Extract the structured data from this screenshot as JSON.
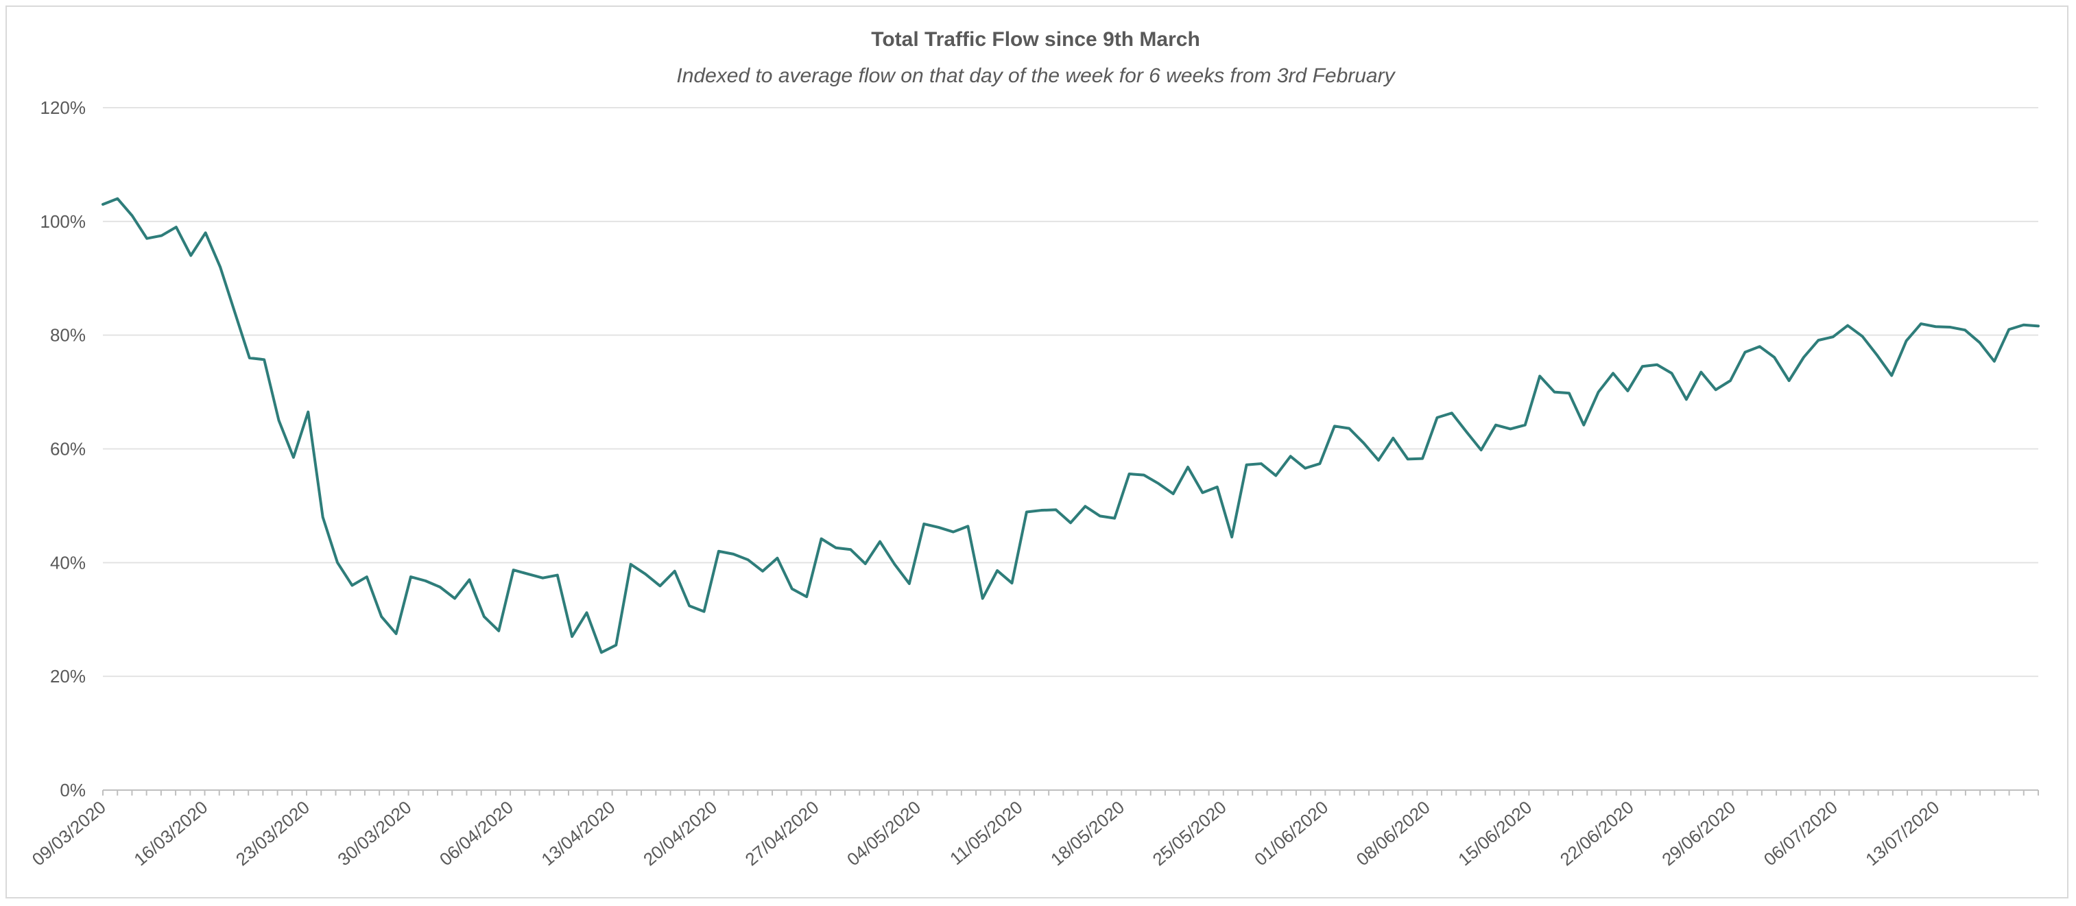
{
  "chart_data": {
    "type": "line",
    "title": "Total Traffic Flow since 9th March",
    "subtitle": "Indexed to average flow on that day of the week for 6 weeks from 3rd February",
    "xlabel": "",
    "ylabel": "",
    "ylim": [
      0,
      120
    ],
    "y_ticks": [
      "0%",
      "20%",
      "40%",
      "60%",
      "80%",
      "100%",
      "120%"
    ],
    "y_tick_values": [
      0,
      20,
      40,
      60,
      80,
      100,
      120
    ],
    "x_start": "09/03/2020",
    "x_end": "20/07/2020",
    "x_tick_labels": [
      "09/03/2020",
      "16/03/2020",
      "23/03/2020",
      "30/03/2020",
      "06/04/2020",
      "13/04/2020",
      "20/04/2020",
      "27/04/2020",
      "04/05/2020",
      "11/05/2020",
      "18/05/2020",
      "25/05/2020",
      "01/06/2020",
      "08/06/2020",
      "15/06/2020",
      "22/06/2020",
      "29/06/2020",
      "06/07/2020",
      "13/07/2020"
    ],
    "grid": true,
    "legend": "none",
    "series": [
      {
        "color": "#2e7d7a",
        "values": [
          103.0,
          104.0,
          101.0,
          97.0,
          97.5,
          99.0,
          94.0,
          98.0,
          92.0,
          84.0,
          76.0,
          75.7,
          65.0,
          58.5,
          66.5,
          48.0,
          40.0,
          36.0,
          37.5,
          30.5,
          27.5,
          37.5,
          36.8,
          35.7,
          33.7,
          37.0,
          30.5,
          28.0,
          38.7,
          38.0,
          37.3,
          37.8,
          27.0,
          31.2,
          24.2,
          25.5,
          39.7,
          38.0,
          35.9,
          38.5,
          32.4,
          31.4,
          42.0,
          41.5,
          40.5,
          38.5,
          40.8,
          35.4,
          34.0,
          44.2,
          42.6,
          42.3,
          39.8,
          43.7,
          39.7,
          36.3,
          46.8,
          46.2,
          45.4,
          46.4,
          33.7,
          38.6,
          36.4,
          48.9,
          49.2,
          49.3,
          47.0,
          49.9,
          48.2,
          47.8,
          55.6,
          55.4,
          53.9,
          52.1,
          56.8,
          52.3,
          53.3,
          44.5,
          57.2,
          57.4,
          55.3,
          58.7,
          56.6,
          57.4,
          64.0,
          63.6,
          61.0,
          58.0,
          61.9,
          58.2,
          58.3,
          65.5,
          66.3,
          63.0,
          59.8,
          64.2,
          63.5,
          64.2,
          72.8,
          70.0,
          69.8,
          64.2,
          70.0,
          73.3,
          70.2,
          74.5,
          74.8,
          73.3,
          68.7,
          73.5,
          70.4,
          72.0,
          77.0,
          78.0,
          76.1,
          72.0,
          76.1,
          79.1,
          79.7,
          81.7,
          79.8,
          76.5,
          72.9,
          79.0,
          82.0,
          81.5,
          81.4,
          80.9,
          78.7,
          75.4,
          81.0,
          81.8,
          81.6
        ]
      }
    ]
  }
}
